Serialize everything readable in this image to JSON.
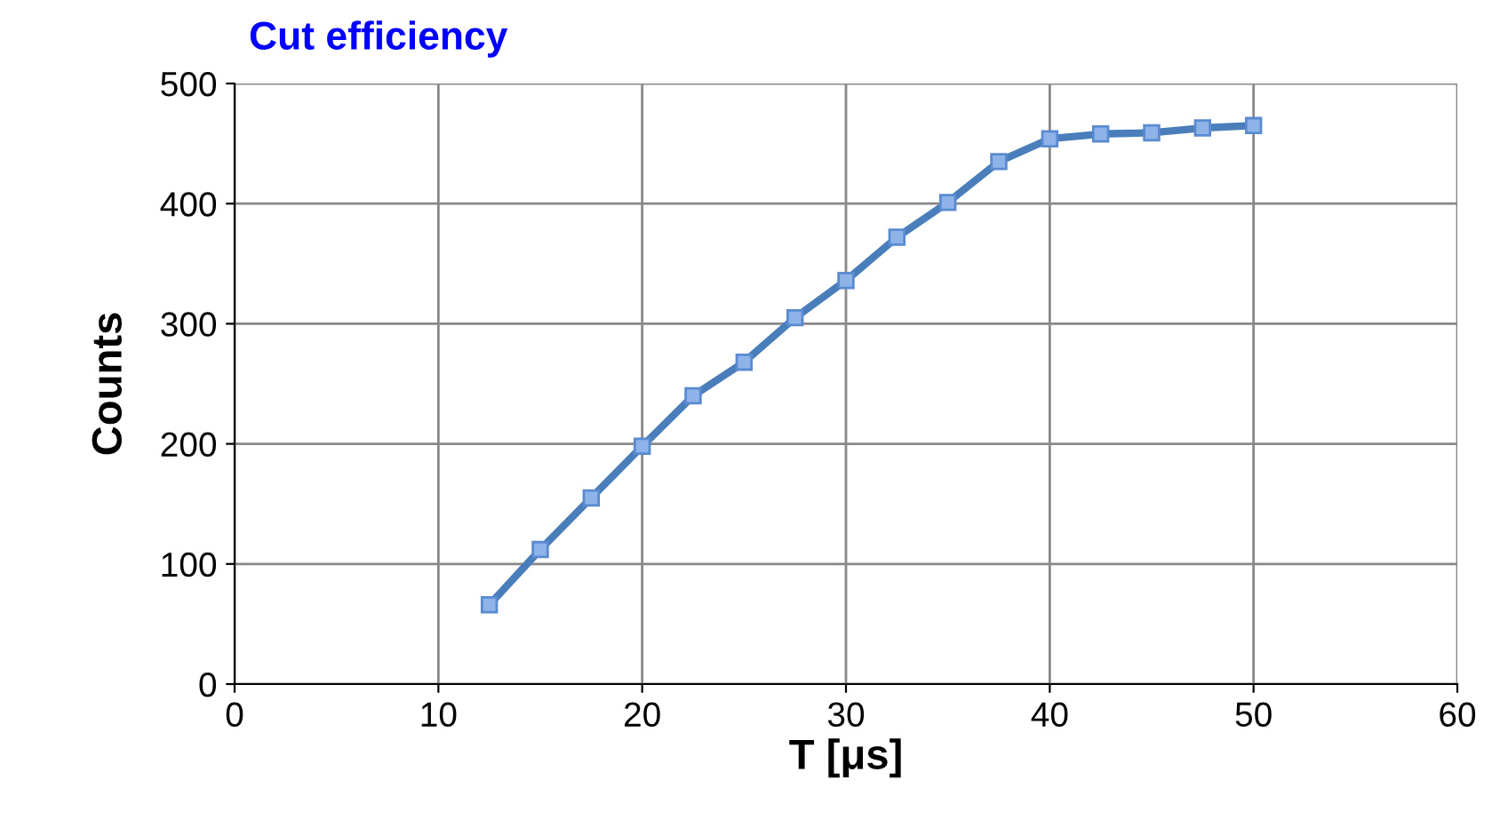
{
  "chart_data": {
    "type": "line",
    "title": "Cut efficiency",
    "xlabel": "T [μs]",
    "ylabel": "Counts",
    "x": [
      12.5,
      15,
      17.5,
      20,
      22.5,
      25,
      27.5,
      30,
      32.5,
      35,
      37.5,
      40,
      42.5,
      45,
      47.5,
      50
    ],
    "series": [
      {
        "color": "#4a7ebb",
        "values": [
          66,
          112,
          155,
          198,
          240,
          268,
          305,
          336,
          372,
          401,
          435,
          454,
          458,
          459,
          463,
          465
        ]
      }
    ],
    "xlim": [
      0,
      60
    ],
    "xticks": [
      0,
      10,
      20,
      30,
      40,
      50,
      60
    ],
    "ylim": [
      0,
      500
    ],
    "yticks": [
      0,
      100,
      200,
      300,
      400,
      500
    ],
    "grid": true,
    "marker": "square",
    "line_style": "solid"
  }
}
